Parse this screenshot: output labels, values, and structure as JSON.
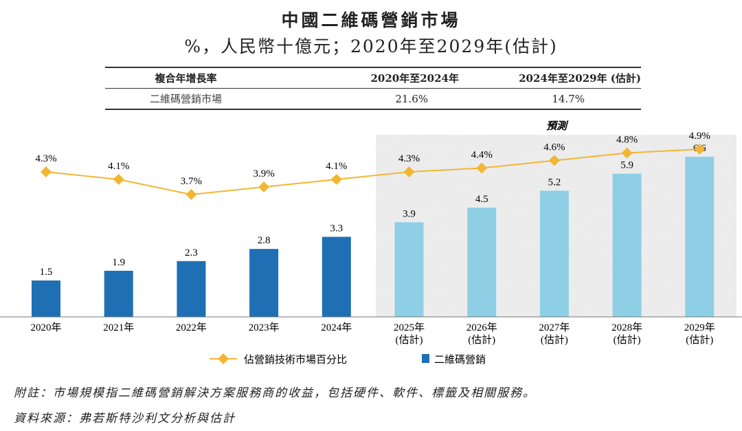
{
  "title": "中國二維碼營銷市場",
  "subtitle": "%，人民幣十億元；2020年至2029年(估計)",
  "cagr_table": {
    "headers": [
      "複合年增長率",
      "2020年至2024年",
      "2024年至2029年 (估計)"
    ],
    "rows": [
      [
        "二維碼營銷市場",
        "21.6%",
        "14.7%"
      ]
    ]
  },
  "forecast_label": "預測",
  "chart_data": {
    "type": "bar+line",
    "categories": [
      "2020年",
      "2021年",
      "2022年",
      "2023年",
      "2024年",
      "2025年\n(估計)",
      "2026年\n(估計)",
      "2027年\n(估計)",
      "2028年\n(估計)",
      "2029年\n(估計)"
    ],
    "series": [
      {
        "name": "二維碼營銷",
        "type": "bar",
        "values": [
          1.5,
          1.9,
          2.3,
          2.8,
          3.3,
          3.9,
          4.5,
          5.2,
          5.9,
          6.6
        ],
        "labels": [
          "1.5",
          "1.9",
          "2.3",
          "2.8",
          "3.3",
          "3.9",
          "4.5",
          "5.2",
          "5.9",
          "6.6"
        ],
        "color": "#1f6fb5",
        "forecast_color": "#8ecfe6"
      },
      {
        "name": "佔營銷技術市場百分比",
        "type": "line",
        "values": [
          4.3,
          4.1,
          3.7,
          3.9,
          4.1,
          4.3,
          4.4,
          4.6,
          4.8,
          4.9
        ],
        "labels": [
          "4.3%",
          "4.1%",
          "3.7%",
          "3.9%",
          "4.1%",
          "4.3%",
          "4.4%",
          "4.6%",
          "4.8%",
          "4.9%"
        ],
        "color": "#f2b632"
      }
    ],
    "forecast_start_index": 5,
    "legend": "bottom"
  },
  "legend": {
    "line": "佔營銷技術市場百分比",
    "bar": "二維碼營銷"
  },
  "notes": {
    "note": "附註：市場規模指二維碼營銷解決方案服務商的收益，包括硬件、軟件、標籤及相關服務。",
    "source": "資料來源：弗若斯特沙利文分析與估計"
  }
}
